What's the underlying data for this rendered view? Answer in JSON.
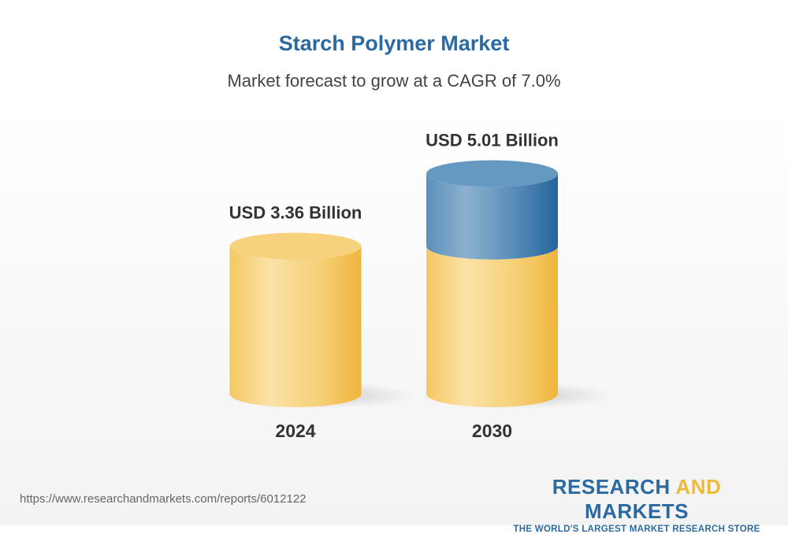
{
  "chart_data": {
    "type": "bar",
    "style": "3d-cylinder",
    "title": "Starch Polymer Market",
    "subtitle": "Market forecast to grow at a CAGR of 7.0%",
    "categories": [
      "2024",
      "2030"
    ],
    "values": [
      3.36,
      5.01
    ],
    "data_labels": [
      "USD 3.36 Billion",
      "USD 5.01 Billion"
    ],
    "unit": "USD Billion",
    "colors": {
      "base": "#f3c156",
      "growth": "#2a6aa0"
    },
    "grid": false
  },
  "footer": {
    "url": "https://www.researchandmarkets.com/reports/6012122",
    "logo_research": "RESEARCH",
    "logo_and": "AND",
    "logo_markets": "MARKETS",
    "logo_tagline": "THE WORLD'S LARGEST MARKET RESEARCH STORE"
  }
}
